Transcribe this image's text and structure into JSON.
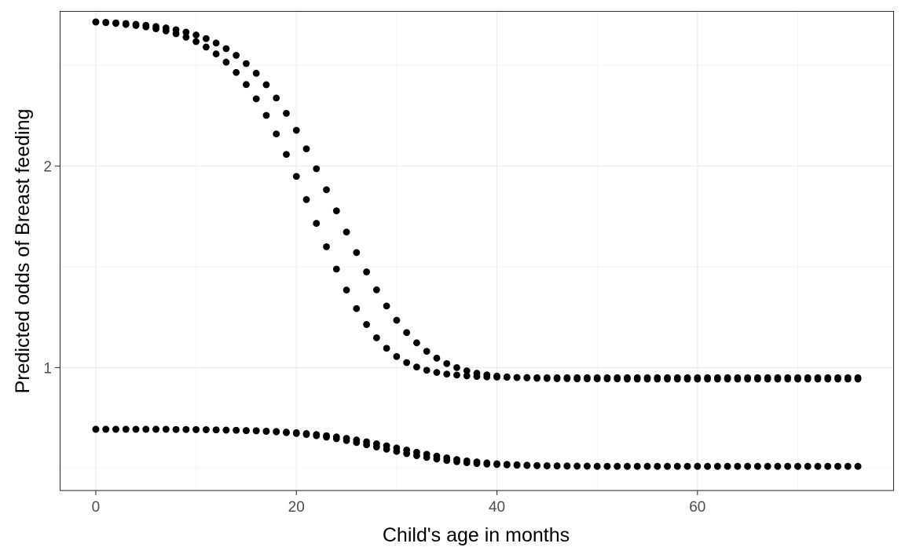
{
  "chart_data": {
    "type": "scatter",
    "title": "",
    "xlabel": "Child's age in months",
    "ylabel": "Predicted odds of Breast feeding",
    "xlim": [
      -3.6,
      79.6
    ],
    "ylim": [
      0.39,
      2.77
    ],
    "x_ticks": [
      0,
      20,
      40,
      60
    ],
    "x_tick_labels": [
      "0",
      "20",
      "40",
      "60"
    ],
    "y_ticks": [
      1,
      2
    ],
    "y_tick_labels": [
      "1",
      "2"
    ],
    "x_minor_ticks": [
      10,
      30,
      50,
      70
    ],
    "y_minor_ticks": [
      0.5,
      1.5,
      2.5
    ],
    "grid": true,
    "legend": "none",
    "point_color": "#000000",
    "series": [
      {
        "x": [
          0,
          1,
          2,
          3,
          4,
          5,
          6,
          7,
          8,
          9,
          10,
          11,
          12,
          13,
          14,
          15,
          16,
          17,
          18,
          19,
          20,
          21,
          22,
          23,
          24,
          25,
          26,
          27,
          28,
          29,
          30,
          31,
          32,
          33,
          34,
          35,
          36,
          37,
          38,
          39,
          40,
          41,
          42,
          43,
          44,
          45,
          46,
          47,
          48,
          49,
          50,
          51,
          52,
          53,
          54,
          55,
          56,
          57,
          58,
          59,
          60,
          61,
          62,
          63,
          64,
          65,
          66,
          67,
          68,
          69,
          70,
          71,
          72,
          73,
          74,
          75,
          76
        ],
        "y": [
          2.715,
          2.712,
          2.708,
          2.703,
          2.698,
          2.691,
          2.682,
          2.671,
          2.657,
          2.64,
          2.618,
          2.591,
          2.557,
          2.516,
          2.465,
          2.405,
          2.334,
          2.252,
          2.16,
          2.058,
          1.949,
          1.834,
          1.716,
          1.6,
          1.489,
          1.385,
          1.293,
          1.214,
          1.148,
          1.096,
          1.055,
          1.025,
          1.003,
          0.987,
          0.976,
          0.968,
          0.963,
          0.959,
          0.956,
          0.954,
          0.953,
          0.952,
          0.951,
          0.951,
          0.95,
          0.95,
          0.95,
          0.95,
          0.95,
          0.95,
          0.95,
          0.95,
          0.95,
          0.95,
          0.95,
          0.95,
          0.95,
          0.95,
          0.95,
          0.95,
          0.95,
          0.95,
          0.95,
          0.95,
          0.95,
          0.95,
          0.95,
          0.95,
          0.95,
          0.95,
          0.95,
          0.95,
          0.95,
          0.95,
          0.95,
          0.95,
          0.95
        ]
      },
      {
        "x": [
          0,
          1,
          2,
          3,
          4,
          5,
          6,
          7,
          8,
          9,
          10,
          11,
          12,
          13,
          14,
          15,
          16,
          17,
          18,
          19,
          20,
          21,
          22,
          23,
          24,
          25,
          26,
          27,
          28,
          29,
          30,
          31,
          32,
          33,
          34,
          35,
          36,
          37,
          38,
          39,
          40,
          41,
          42,
          43,
          44,
          45,
          46,
          47,
          48,
          49,
          50,
          51,
          52,
          53,
          54,
          55,
          56,
          57,
          58,
          59,
          60,
          61,
          62,
          63,
          64,
          65,
          66,
          67,
          68,
          69,
          70,
          71,
          72,
          73,
          74,
          75,
          76
        ],
        "y": [
          2.716,
          2.714,
          2.711,
          2.708,
          2.704,
          2.699,
          2.693,
          2.686,
          2.677,
          2.665,
          2.651,
          2.633,
          2.611,
          2.583,
          2.55,
          2.509,
          2.461,
          2.404,
          2.338,
          2.262,
          2.178,
          2.086,
          1.987,
          1.883,
          1.778,
          1.673,
          1.571,
          1.475,
          1.386,
          1.306,
          1.235,
          1.174,
          1.123,
          1.081,
          1.047,
          1.02,
          1.0,
          0.984,
          0.972,
          0.964,
          0.958,
          0.954,
          0.951,
          0.949,
          0.947,
          0.946,
          0.945,
          0.945,
          0.944,
          0.944,
          0.944,
          0.944,
          0.944,
          0.943,
          0.943,
          0.943,
          0.943,
          0.943,
          0.943,
          0.943,
          0.943,
          0.943,
          0.943,
          0.943,
          0.943,
          0.943,
          0.943,
          0.943,
          0.943,
          0.943,
          0.943,
          0.943,
          0.943,
          0.943,
          0.943,
          0.943,
          0.943
        ]
      },
      {
        "x": [
          0,
          1,
          2,
          3,
          4,
          5,
          6,
          7,
          8,
          9,
          10,
          11,
          12,
          13,
          14,
          15,
          16,
          17,
          18,
          19,
          20,
          21,
          22,
          23,
          24,
          25,
          26,
          27,
          28,
          29,
          30,
          31,
          32,
          33,
          34,
          35,
          36,
          37,
          38,
          39,
          40,
          41,
          42,
          43,
          44,
          45,
          46,
          47,
          48,
          49,
          50,
          51,
          52,
          53,
          54,
          55,
          56,
          57,
          58,
          59,
          60,
          61,
          62,
          63,
          64,
          65,
          66,
          67,
          68,
          69,
          70,
          71,
          72,
          73,
          74,
          75,
          76
        ],
        "y": [
          0.694,
          0.694,
          0.694,
          0.694,
          0.694,
          0.694,
          0.694,
          0.694,
          0.693,
          0.693,
          0.692,
          0.692,
          0.691,
          0.69,
          0.689,
          0.687,
          0.686,
          0.683,
          0.681,
          0.677,
          0.673,
          0.668,
          0.662,
          0.655,
          0.647,
          0.638,
          0.628,
          0.617,
          0.606,
          0.595,
          0.584,
          0.573,
          0.563,
          0.554,
          0.546,
          0.539,
          0.533,
          0.528,
          0.524,
          0.521,
          0.519,
          0.517,
          0.515,
          0.514,
          0.513,
          0.512,
          0.512,
          0.511,
          0.511,
          0.511,
          0.51,
          0.51,
          0.51,
          0.51,
          0.51,
          0.51,
          0.51,
          0.51,
          0.51,
          0.51,
          0.51,
          0.51,
          0.51,
          0.51,
          0.51,
          0.51,
          0.51,
          0.51,
          0.51,
          0.51,
          0.51,
          0.51,
          0.51,
          0.51,
          0.51,
          0.51,
          0.51
        ]
      },
      {
        "x": [
          0,
          1,
          2,
          3,
          4,
          5,
          6,
          7,
          8,
          9,
          10,
          11,
          12,
          13,
          14,
          15,
          16,
          17,
          18,
          19,
          20,
          21,
          22,
          23,
          24,
          25,
          26,
          27,
          28,
          29,
          30,
          31,
          32,
          33,
          34,
          35,
          36,
          37,
          38,
          39,
          40,
          41,
          42,
          43,
          44,
          45,
          46,
          47,
          48,
          49,
          50,
          51,
          52,
          53,
          54,
          55,
          56,
          57,
          58,
          59,
          60,
          61,
          62,
          63,
          64,
          65,
          66,
          67,
          68,
          69,
          70,
          71,
          72,
          73,
          74,
          75,
          76
        ],
        "y": [
          0.694,
          0.694,
          0.694,
          0.694,
          0.694,
          0.694,
          0.694,
          0.694,
          0.693,
          0.693,
          0.693,
          0.692,
          0.691,
          0.69,
          0.689,
          0.688,
          0.687,
          0.685,
          0.683,
          0.68,
          0.677,
          0.673,
          0.668,
          0.662,
          0.656,
          0.649,
          0.641,
          0.632,
          0.622,
          0.612,
          0.601,
          0.591,
          0.58,
          0.57,
          0.561,
          0.552,
          0.544,
          0.537,
          0.532,
          0.527,
          0.523,
          0.52,
          0.518,
          0.516,
          0.514,
          0.513,
          0.512,
          0.512,
          0.511,
          0.511,
          0.51,
          0.51,
          0.51,
          0.51,
          0.51,
          0.51,
          0.51,
          0.51,
          0.51,
          0.51,
          0.51,
          0.51,
          0.51,
          0.51,
          0.51,
          0.51,
          0.51,
          0.51,
          0.51,
          0.51,
          0.51,
          0.51,
          0.51,
          0.51,
          0.51,
          0.51,
          0.51
        ]
      }
    ]
  }
}
